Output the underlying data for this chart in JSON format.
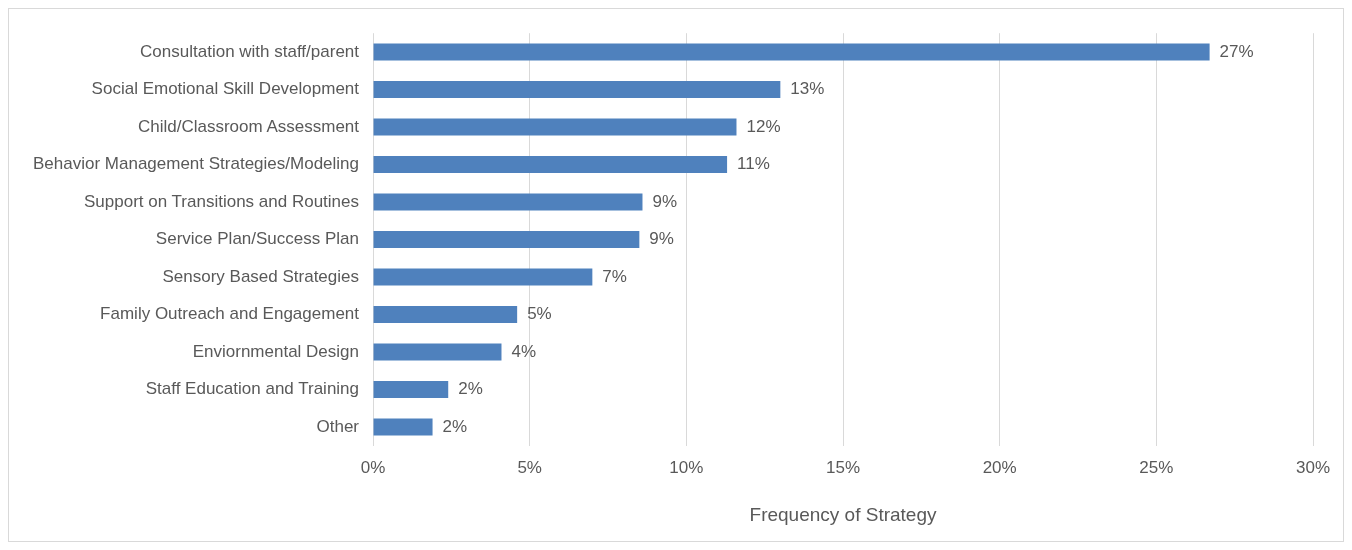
{
  "chart_data": {
    "type": "bar",
    "orientation": "horizontal",
    "xlabel": "Frequency of Strategy",
    "categories": [
      "Consultation with staff/parent",
      "Social Emotional Skill Development",
      "Child/Classroom Assessment",
      "Behavior Management Strategies/Modeling",
      "Support on Transitions and Routines",
      "Service Plan/Success Plan",
      "Sensory Based Strategies",
      "Family Outreach and Engagement",
      "Enviornmental Design",
      "Staff Education and Training",
      "Other"
    ],
    "values": [
      26.7,
      13.0,
      11.6,
      11.3,
      8.6,
      8.5,
      7.0,
      4.6,
      4.1,
      2.4,
      1.9
    ],
    "value_labels": [
      "27%",
      "13%",
      "12%",
      "11%",
      "9%",
      "9%",
      "7%",
      "5%",
      "4%",
      "2%",
      "2%"
    ],
    "color": "#4f81bd",
    "xlim": [
      0,
      30
    ],
    "xticks": [
      {
        "value": 0,
        "label": "0%"
      },
      {
        "value": 5,
        "label": "5%"
      },
      {
        "value": 10,
        "label": "10%"
      },
      {
        "value": 15,
        "label": "15%"
      },
      {
        "value": 20,
        "label": "20%"
      },
      {
        "value": 25,
        "label": "25%"
      },
      {
        "value": 30,
        "label": "30%"
      }
    ],
    "grid": "x",
    "legend": false
  }
}
